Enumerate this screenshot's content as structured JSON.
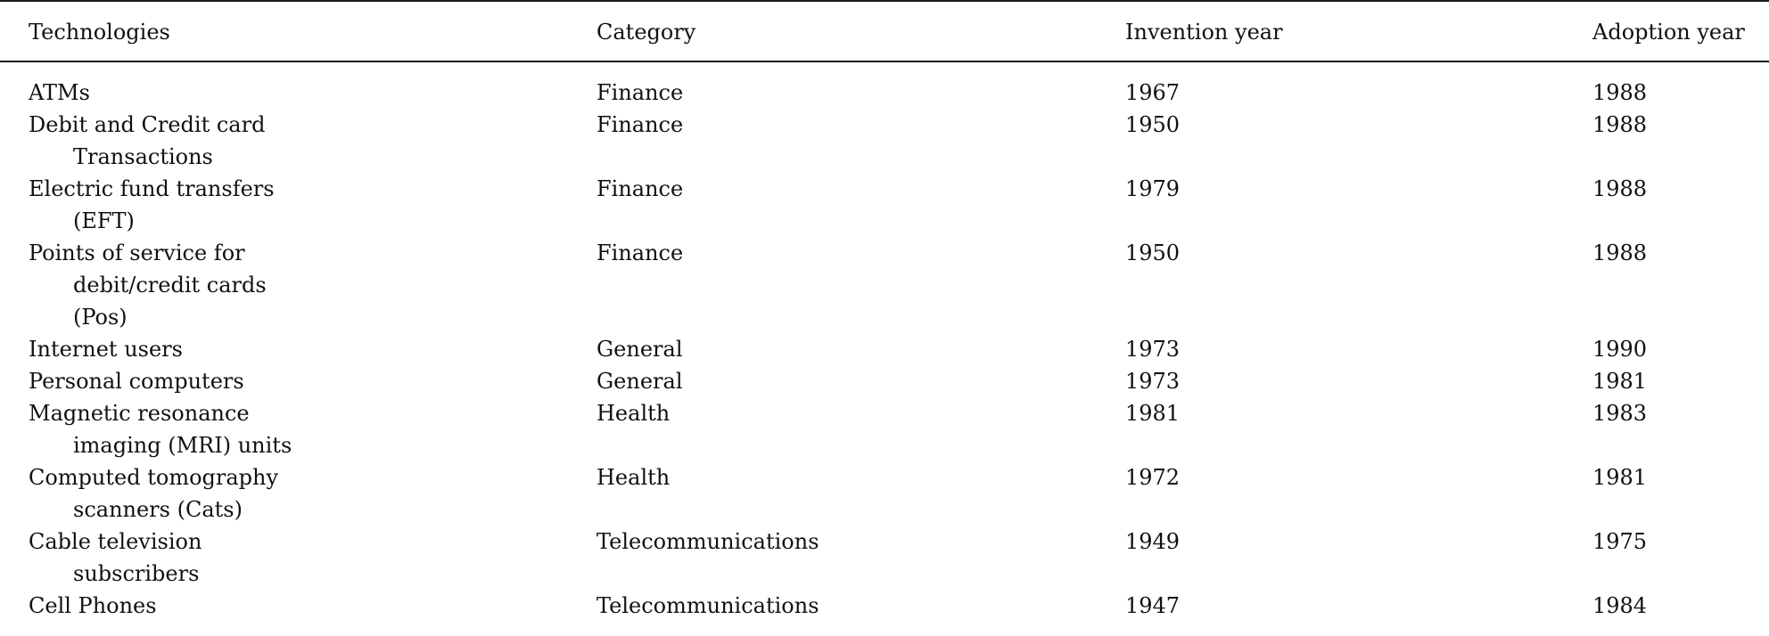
{
  "table": {
    "headers": [
      "Technologies",
      "Category",
      "Invention year",
      "Adoption year"
    ],
    "rows": [
      {
        "technology": [
          "ATMs"
        ],
        "category": "Finance",
        "invention": "1967",
        "adoption": "1988"
      },
      {
        "technology": [
          "Debit and Credit card",
          "Transactions"
        ],
        "category": "Finance",
        "invention": "1950",
        "adoption": "1988"
      },
      {
        "technology": [
          "Electric fund transfers",
          "(EFT)"
        ],
        "category": "Finance",
        "invention": "1979",
        "adoption": "1988"
      },
      {
        "technology": [
          "Points of service for",
          "debit/credit cards",
          "(Pos)"
        ],
        "category": "Finance",
        "invention": "1950",
        "adoption": "1988"
      },
      {
        "technology": [
          "Internet users"
        ],
        "category": "General",
        "invention": "1973",
        "adoption": "1990"
      },
      {
        "technology": [
          "Personal computers"
        ],
        "category": "General",
        "invention": "1973",
        "adoption": "1981"
      },
      {
        "technology": [
          "Magnetic resonance",
          "imaging (MRI) units"
        ],
        "category": "Health",
        "invention": "1981",
        "adoption": "1983"
      },
      {
        "technology": [
          "Computed tomography",
          "scanners (Cats)"
        ],
        "category": "Health",
        "invention": "1972",
        "adoption": "1981"
      },
      {
        "technology": [
          "Cable television",
          "subscribers"
        ],
        "category": "Telecommunications",
        "invention": "1949",
        "adoption": "1975"
      },
      {
        "technology": [
          "Cell Phones"
        ],
        "category": "Telecommunications",
        "invention": "1947",
        "adoption": "1984"
      }
    ]
  }
}
